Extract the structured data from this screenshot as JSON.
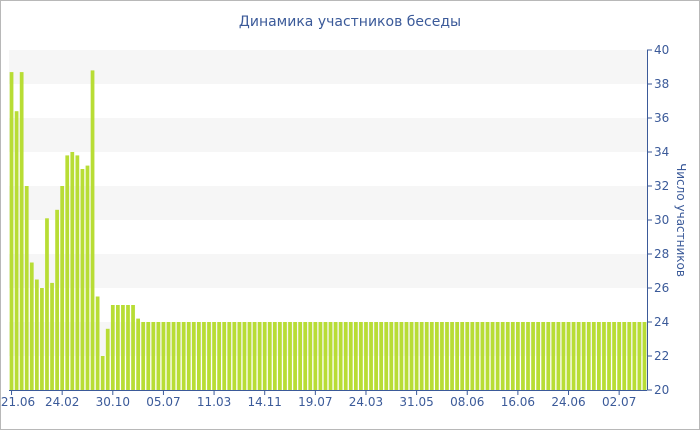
{
  "chart_data": {
    "type": "bar",
    "title": "Динамика участников беседы",
    "ylabel": "Число участников",
    "xlabel": "",
    "ylim": [
      20,
      40
    ],
    "yticks": [
      20,
      22,
      24,
      26,
      28,
      30,
      32,
      34,
      36,
      38,
      40
    ],
    "xtick_labels": [
      "21.06",
      "24.02",
      "30.10",
      "05.07",
      "11.03",
      "14.11",
      "19.07",
      "24.03",
      "31.05",
      "08.06",
      "16.06",
      "24.06",
      "02.07"
    ],
    "xtick_positions": [
      0,
      10,
      20,
      30,
      40,
      50,
      60,
      70,
      80,
      90,
      100,
      110,
      120
    ],
    "grid": "horizontal-bands",
    "bar_color": "#b8dd35",
    "values": [
      38.7,
      36.4,
      38.7,
      32.0,
      27.5,
      26.5,
      26.0,
      30.1,
      26.3,
      30.6,
      32.0,
      33.8,
      34.0,
      33.8,
      33.0,
      33.2,
      38.8,
      25.5,
      22.0,
      23.6,
      25.0,
      25.0,
      25.0,
      25.0,
      25.0,
      24.2,
      24.0,
      24.0,
      24.0,
      24.0,
      24.0,
      24.0,
      24.0,
      24.0,
      24.0,
      24.0,
      24.0,
      24.0,
      24.0,
      24.0,
      24.0,
      24.0,
      24.0,
      24.0,
      24.0,
      24.0,
      24.0,
      24.0,
      24.0,
      24.0,
      24.0,
      24.0,
      24.0,
      24.0,
      24.0,
      24.0,
      24.0,
      24.0,
      24.0,
      24.0,
      24.0,
      24.0,
      24.0,
      24.0,
      24.0,
      24.0,
      24.0,
      24.0,
      24.0,
      24.0,
      24.0,
      24.0,
      24.0,
      24.0,
      24.0,
      24.0,
      24.0,
      24.0,
      24.0,
      24.0,
      24.0,
      24.0,
      24.0,
      24.0,
      24.0,
      24.0,
      24.0,
      24.0,
      24.0,
      24.0,
      24.0,
      24.0,
      24.0,
      24.0,
      24.0,
      24.0,
      24.0,
      24.0,
      24.0,
      24.0,
      24.0,
      24.0,
      24.0,
      24.0,
      24.0,
      24.0,
      24.0,
      24.0,
      24.0,
      24.0,
      24.0,
      24.0,
      24.0,
      24.0,
      24.0,
      24.0,
      24.0,
      24.0,
      24.0,
      24.0,
      24.0,
      24.0,
      24.0,
      24.0,
      24.0,
      24.0
    ]
  }
}
